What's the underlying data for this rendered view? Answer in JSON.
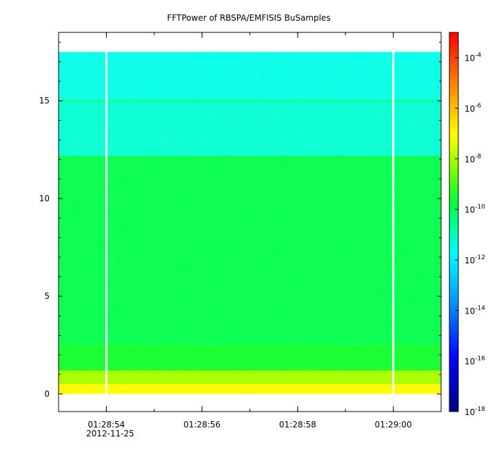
{
  "chart_data": {
    "type": "heatmap",
    "title": "FFTPower of RBSPA/EMFISIS  BuSamples",
    "xlabel": "",
    "ylabel": "",
    "x_date_label": "2012-11-25",
    "x_ticks": [
      "01:28:54",
      "01:28:56",
      "01:28:58",
      "01:29:00"
    ],
    "x_range": [
      "01:28:53.0",
      "01:29:01.0"
    ],
    "y_ticks": [
      0,
      5,
      10,
      15
    ],
    "y_range": [
      -0.9,
      18.5
    ],
    "data_y_range": [
      0,
      17.5
    ],
    "gaps_at": [
      "01:28:54",
      "01:29:00"
    ],
    "bands": [
      {
        "y_from": 0.0,
        "y_to": 0.5,
        "log10_power": -7.0
      },
      {
        "y_from": 0.5,
        "y_to": 1.2,
        "log10_power": -8.0
      },
      {
        "y_from": 1.2,
        "y_to": 2.5,
        "log10_power": -9.6
      },
      {
        "y_from": 2.5,
        "y_to": 12.2,
        "log10_power": -10.0
      },
      {
        "y_from": 12.2,
        "y_to": 14.9,
        "log10_power": -11.4
      },
      {
        "y_from": 14.9,
        "y_to": 15.1,
        "log10_power": -11.0
      },
      {
        "y_from": 15.1,
        "y_to": 17.5,
        "log10_power": -11.6
      }
    ],
    "colorbar": {
      "scale": "log",
      "range": [
        1e-18,
        0.001
      ],
      "ticks": [
        {
          "base": "10",
          "exp": "-4"
        },
        {
          "base": "10",
          "exp": "-6"
        },
        {
          "base": "10",
          "exp": "-8"
        },
        {
          "base": "10",
          "exp": "-10"
        },
        {
          "base": "10",
          "exp": "-12"
        },
        {
          "base": "10",
          "exp": "-14"
        },
        {
          "base": "10",
          "exp": "-16"
        },
        {
          "base": "10",
          "exp": "-18"
        }
      ],
      "colormap": [
        "#00007f",
        "#0000ff",
        "#00ffff",
        "#00ff00",
        "#ffff00",
        "#ff7f00",
        "#ff0000"
      ]
    },
    "grid": false
  }
}
